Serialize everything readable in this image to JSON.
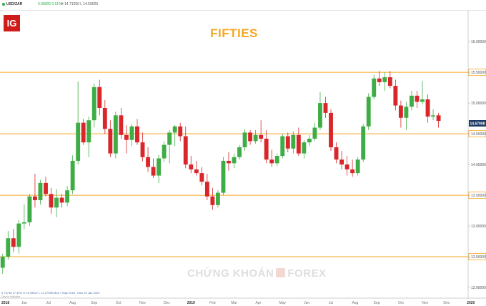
{
  "header": {
    "symbol": "USD/ZAR",
    "change": "0.08900  0.61%",
    "high_low": "H 14.71260  L 14.55620"
  },
  "brand": {
    "logo_text": "IG"
  },
  "chart_data": {
    "type": "candlestick",
    "title": "FIFTIES",
    "ylim": [
      12.0,
      16.2
    ],
    "y_ticks": [
      "16.00000",
      "15.50000",
      "15.00000",
      "14.50000",
      "14.00000",
      "13.50000",
      "13.00000",
      "12.50000",
      "12.00000"
    ],
    "y_tick_values": [
      16.0,
      15.5,
      15.0,
      14.5,
      14.0,
      13.5,
      13.0,
      12.5,
      12.0
    ],
    "x_labels": [
      "2018",
      "Jun",
      "Jul",
      "Aug",
      "Sep",
      "Oct",
      "Nov",
      "Dec",
      "2019",
      "Feb",
      "Mar",
      "Apr",
      "May",
      "Jun",
      "Jul",
      "Aug",
      "Sep",
      "Oct",
      "Nov",
      "Dec",
      "2020"
    ],
    "x_label_week": [
      0,
      4,
      8.5,
      13,
      17,
      21.5,
      26,
      30.5,
      35,
      39,
      43,
      47.5,
      52,
      56.5,
      61,
      65.5,
      69.5,
      74,
      78.5,
      82.5,
      87
    ],
    "n_slots": 87,
    "horizontal_levels": [
      15.5,
      14.5,
      13.5,
      12.5
    ],
    "current_price": 14.67008,
    "current_price_label": "14.67008",
    "grid": false,
    "colors": {
      "up": "#3fad46",
      "down": "#d8262a",
      "level": "#f6a623",
      "title": "#f6a623",
      "price_tag": "#1f3b65"
    },
    "candles": [
      {
        "o": 12.32,
        "h": 12.55,
        "l": 12.22,
        "c": 12.5
      },
      {
        "o": 12.5,
        "h": 12.92,
        "l": 12.45,
        "c": 12.8
      },
      {
        "o": 12.8,
        "h": 12.95,
        "l": 12.58,
        "c": 12.66
      },
      {
        "o": 12.66,
        "h": 13.1,
        "l": 12.55,
        "c": 13.04
      },
      {
        "o": 13.04,
        "h": 13.35,
        "l": 12.95,
        "c": 13.06
      },
      {
        "o": 13.06,
        "h": 13.52,
        "l": 13.0,
        "c": 13.48
      },
      {
        "o": 13.48,
        "h": 13.85,
        "l": 13.3,
        "c": 13.42
      },
      {
        "o": 13.42,
        "h": 13.75,
        "l": 13.35,
        "c": 13.7
      },
      {
        "o": 13.7,
        "h": 13.8,
        "l": 13.48,
        "c": 13.52
      },
      {
        "o": 13.52,
        "h": 13.62,
        "l": 13.2,
        "c": 13.3
      },
      {
        "o": 13.3,
        "h": 13.6,
        "l": 13.14,
        "c": 13.46
      },
      {
        "o": 13.46,
        "h": 13.52,
        "l": 13.3,
        "c": 13.38
      },
      {
        "o": 13.38,
        "h": 13.65,
        "l": 13.32,
        "c": 13.58
      },
      {
        "o": 13.58,
        "h": 14.15,
        "l": 13.52,
        "c": 14.06
      },
      {
        "o": 14.06,
        "h": 15.35,
        "l": 14.0,
        "c": 14.68
      },
      {
        "o": 14.68,
        "h": 14.74,
        "l": 14.32,
        "c": 14.36
      },
      {
        "o": 14.36,
        "h": 14.78,
        "l": 14.12,
        "c": 14.72
      },
      {
        "o": 14.72,
        "h": 15.32,
        "l": 14.6,
        "c": 15.26
      },
      {
        "o": 15.26,
        "h": 15.38,
        "l": 14.8,
        "c": 14.92
      },
      {
        "o": 14.92,
        "h": 15.05,
        "l": 14.5,
        "c": 14.58
      },
      {
        "o": 14.58,
        "h": 14.72,
        "l": 14.12,
        "c": 14.18
      },
      {
        "o": 14.18,
        "h": 14.86,
        "l": 14.1,
        "c": 14.8
      },
      {
        "o": 14.8,
        "h": 14.92,
        "l": 14.42,
        "c": 14.48
      },
      {
        "o": 14.48,
        "h": 14.64,
        "l": 14.18,
        "c": 14.4
      },
      {
        "o": 14.4,
        "h": 14.66,
        "l": 14.3,
        "c": 14.62
      },
      {
        "o": 14.62,
        "h": 14.74,
        "l": 14.32,
        "c": 14.36
      },
      {
        "o": 14.36,
        "h": 14.52,
        "l": 14.05,
        "c": 14.12
      },
      {
        "o": 14.12,
        "h": 14.28,
        "l": 13.88,
        "c": 13.96
      },
      {
        "o": 13.96,
        "h": 14.1,
        "l": 13.78,
        "c": 13.82
      },
      {
        "o": 13.82,
        "h": 14.16,
        "l": 13.7,
        "c": 14.1
      },
      {
        "o": 14.1,
        "h": 14.38,
        "l": 14.04,
        "c": 14.32
      },
      {
        "o": 14.32,
        "h": 14.56,
        "l": 14.02,
        "c": 14.52
      },
      {
        "o": 14.52,
        "h": 14.64,
        "l": 14.3,
        "c": 14.62
      },
      {
        "o": 14.62,
        "h": 14.68,
        "l": 14.38,
        "c": 14.46
      },
      {
        "o": 14.46,
        "h": 14.62,
        "l": 13.94,
        "c": 14.0
      },
      {
        "o": 14.0,
        "h": 14.14,
        "l": 13.86,
        "c": 13.92
      },
      {
        "o": 13.92,
        "h": 14.06,
        "l": 13.82,
        "c": 13.86
      },
      {
        "o": 13.86,
        "h": 13.96,
        "l": 13.66,
        "c": 13.72
      },
      {
        "o": 13.72,
        "h": 13.85,
        "l": 13.42,
        "c": 13.48
      },
      {
        "o": 13.48,
        "h": 13.62,
        "l": 13.26,
        "c": 13.34
      },
      {
        "o": 13.34,
        "h": 13.58,
        "l": 13.3,
        "c": 13.54
      },
      {
        "o": 13.54,
        "h": 14.12,
        "l": 13.5,
        "c": 14.06
      },
      {
        "o": 14.06,
        "h": 14.2,
        "l": 13.9,
        "c": 14.02
      },
      {
        "o": 14.02,
        "h": 14.18,
        "l": 13.94,
        "c": 14.12
      },
      {
        "o": 14.12,
        "h": 14.32,
        "l": 14.08,
        "c": 14.28
      },
      {
        "o": 14.28,
        "h": 14.58,
        "l": 14.22,
        "c": 14.52
      },
      {
        "o": 14.52,
        "h": 14.56,
        "l": 14.32,
        "c": 14.38
      },
      {
        "o": 14.38,
        "h": 14.56,
        "l": 14.34,
        "c": 14.48
      },
      {
        "o": 14.48,
        "h": 14.72,
        "l": 14.36,
        "c": 14.42
      },
      {
        "o": 14.42,
        "h": 14.56,
        "l": 14.02,
        "c": 14.08
      },
      {
        "o": 14.08,
        "h": 14.24,
        "l": 13.96,
        "c": 14.02
      },
      {
        "o": 14.02,
        "h": 14.18,
        "l": 13.98,
        "c": 14.14
      },
      {
        "o": 14.14,
        "h": 14.5,
        "l": 14.1,
        "c": 14.46
      },
      {
        "o": 14.46,
        "h": 14.52,
        "l": 14.2,
        "c": 14.26
      },
      {
        "o": 14.26,
        "h": 14.54,
        "l": 14.18,
        "c": 14.48
      },
      {
        "o": 14.48,
        "h": 14.6,
        "l": 14.14,
        "c": 14.18
      },
      {
        "o": 14.18,
        "h": 14.4,
        "l": 14.1,
        "c": 14.36
      },
      {
        "o": 14.36,
        "h": 14.48,
        "l": 14.3,
        "c": 14.42
      },
      {
        "o": 14.42,
        "h": 14.68,
        "l": 14.38,
        "c": 14.6
      },
      {
        "o": 14.6,
        "h": 15.18,
        "l": 14.56,
        "c": 15.0
      },
      {
        "o": 15.0,
        "h": 15.1,
        "l": 14.76,
        "c": 14.84
      },
      {
        "o": 14.84,
        "h": 14.9,
        "l": 14.22,
        "c": 14.28
      },
      {
        "o": 14.28,
        "h": 14.36,
        "l": 14.02,
        "c": 14.08
      },
      {
        "o": 14.08,
        "h": 14.22,
        "l": 13.92,
        "c": 14.0
      },
      {
        "o": 14.0,
        "h": 14.14,
        "l": 13.82,
        "c": 13.92
      },
      {
        "o": 13.92,
        "h": 14.08,
        "l": 13.8,
        "c": 13.86
      },
      {
        "o": 13.86,
        "h": 14.12,
        "l": 13.82,
        "c": 14.08
      },
      {
        "o": 14.08,
        "h": 14.66,
        "l": 14.04,
        "c": 14.62
      },
      {
        "o": 14.62,
        "h": 15.16,
        "l": 14.56,
        "c": 15.1
      },
      {
        "o": 15.1,
        "h": 15.46,
        "l": 15.06,
        "c": 15.4
      },
      {
        "o": 15.4,
        "h": 15.52,
        "l": 15.28,
        "c": 15.34
      },
      {
        "o": 15.34,
        "h": 15.5,
        "l": 15.2,
        "c": 15.42
      },
      {
        "o": 15.42,
        "h": 15.52,
        "l": 15.24,
        "c": 15.28
      },
      {
        "o": 15.28,
        "h": 15.38,
        "l": 14.88,
        "c": 14.96
      },
      {
        "o": 14.96,
        "h": 15.04,
        "l": 14.6,
        "c": 14.76
      },
      {
        "o": 14.76,
        "h": 15.02,
        "l": 14.56,
        "c": 14.94
      },
      {
        "o": 14.94,
        "h": 15.2,
        "l": 14.88,
        "c": 15.12
      },
      {
        "o": 15.12,
        "h": 15.2,
        "l": 14.92,
        "c": 15.02
      },
      {
        "o": 15.02,
        "h": 15.36,
        "l": 14.98,
        "c": 15.06
      },
      {
        "o": 15.06,
        "h": 15.14,
        "l": 14.68,
        "c": 14.78
      },
      {
        "o": 14.78,
        "h": 14.9,
        "l": 14.72,
        "c": 14.8
      },
      {
        "o": 14.8,
        "h": 14.84,
        "l": 14.6,
        "c": 14.71
      }
    ]
  },
  "footer": {
    "stats": "0.74748  17.32%  H 15.49647  L 14.17956  Mon 7 May 2018 - Mon 20 Jan 2020",
    "note": "Data is indicative"
  },
  "watermark": {
    "left": "CHỨNG KHOÁN",
    "right": "FOREX"
  }
}
